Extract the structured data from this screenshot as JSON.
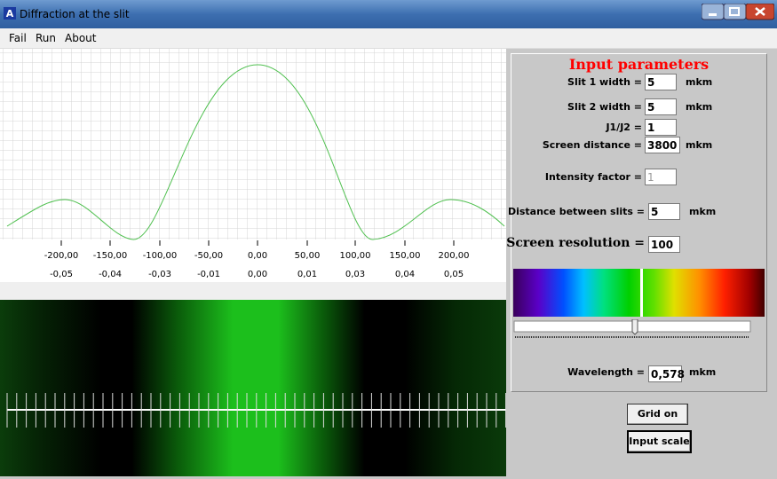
{
  "window": {
    "title": "Diffraction at the slit"
  },
  "menu": [
    "Fail",
    "Run",
    "About"
  ],
  "graph": {
    "x_labels": [
      "-200,00",
      "-150,00",
      "-100,00",
      "-50,00",
      "0,00",
      "50,00",
      "100,00",
      "150,00",
      "200,00"
    ],
    "x2_labels": [
      "-0,05",
      "-0,04",
      "-0,03",
      "-0,01",
      "0,00",
      "0,01",
      "0,03",
      "0,04",
      "0,05"
    ]
  },
  "panel": {
    "title": "Input parameters",
    "fields": [
      {
        "label": "Slit 1 width =",
        "value": "5",
        "unit": "mkm"
      },
      {
        "label": "Slit 2 width =",
        "value": "5",
        "unit": "mkm"
      },
      {
        "label": "J1/J2 =",
        "value": "1"
      },
      {
        "label": "Screen distance =",
        "value": "3800",
        "unit": "mkm"
      },
      {
        "label": "Intensity factor =",
        "value": "1"
      },
      {
        "label": "Distance between slits =",
        "value": "5",
        "unit": "mkm"
      },
      {
        "label": "Screen resolution =",
        "value": "100"
      },
      {
        "label": "Wavelength =",
        "value": "0,578",
        "unit": "mkm"
      }
    ]
  },
  "buttons": [
    "Grid on",
    "Input scale"
  ]
}
